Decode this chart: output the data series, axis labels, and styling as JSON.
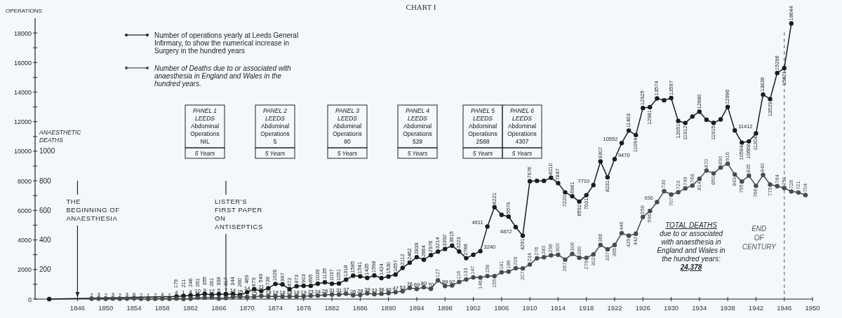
{
  "chart_data": {
    "type": "line",
    "title": "CHART I",
    "ylabel": "OPERATIONS",
    "y2label": "ANAESTHETIC DEATHS",
    "xlim": [
      1840,
      1950
    ],
    "xticks": [
      1846,
      1850,
      1854,
      1858,
      1862,
      1866,
      1870,
      1874,
      1878,
      1882,
      1886,
      1890,
      1894,
      1898,
      1902,
      1906,
      1910,
      1914,
      1918,
      1922,
      1926,
      1930,
      1934,
      1938,
      1942,
      1946,
      1950
    ],
    "ylim": [
      0,
      19000
    ],
    "yticks": [
      0,
      {
        "value": 1000,
        "label": null
      },
      2000,
      {
        "value": 3000,
        "label": null
      },
      4000,
      {
        "value": 5000,
        "label": null
      },
      6000,
      {
        "value": 7000,
        "label": null
      },
      8000,
      {
        "value": 9000,
        "label": null
      },
      10000,
      {
        "value": 11000,
        "label": null
      },
      12000,
      {
        "value": 13000,
        "label": null
      },
      14000,
      {
        "value": 15000,
        "label": null
      },
      16000,
      {
        "value": 17000,
        "label": null
      },
      18000
    ],
    "y2lim": [
      0,
      1900
    ],
    "y2ticks": [
      200,
      400,
      600,
      800,
      1000
    ],
    "marker": "circle",
    "legend": "top left",
    "series": [
      {
        "name": "Number of operations yearly at Leeds General Infirmary, to show the numerical increase in Surgery in the hundred years",
        "color": "#1c1c1c",
        "x": [
          1842,
          1860,
          1861,
          1862,
          1863,
          1864,
          1865,
          1866,
          1867,
          1868,
          1869,
          1870,
          1871,
          1872,
          1873,
          1874,
          1875,
          1876,
          1877,
          1878,
          1879,
          1880,
          1881,
          1882,
          1883,
          1884,
          1885,
          1886,
          1887,
          1888,
          1889,
          1890,
          1891,
          1892,
          1893,
          1894,
          1895,
          1896,
          1897,
          1898,
          1899,
          1900,
          1901,
          1902,
          1903,
          1904,
          1905,
          1906,
          1907,
          1908,
          1909,
          1910,
          1911,
          1912,
          1913,
          1914,
          1915,
          1916,
          1917,
          1918,
          1919,
          1920,
          1921,
          1922,
          1923,
          1924,
          1925,
          1926,
          1927,
          1928,
          1929,
          1930,
          1931,
          1932,
          1933,
          1934,
          1935,
          1936,
          1937,
          1938,
          1939,
          1940,
          1941,
          1942,
          1943,
          1944,
          1945,
          1946,
          1947
        ],
        "values": [
          0,
          179,
          211,
          246,
          261,
          355,
          281,
          338,
          317,
          344,
          260,
          469,
          679,
          549,
          736,
          1026,
          997,
          672,
          873,
          903,
          895,
          1039,
          1135,
          1037,
          1051,
          1318,
          1585,
          1541,
          1435,
          1598,
          1424,
          1530,
          1657,
          2112,
          2462,
          2839,
          2664,
          2976,
          3214,
          3392,
          3615,
          3223,
          2766,
          3000,
          3240,
          4911,
          6221,
          5700,
          5579,
          4872,
          4291,
          7976,
          8000,
          8000,
          8210,
          7847,
          7220,
          6961,
          6592,
          7031,
          7710,
          9307,
          8231,
          9470,
          10552,
          11403,
          11094,
          12925,
          12981,
          13574,
          13450,
          13597,
          12051,
          11912,
          12350,
          12680,
          12130,
          11915,
          12150,
          12996,
          11412,
          10584,
          10668,
          11204,
          13836,
          13529,
          15296,
          15621,
          18644
        ],
        "value_labels": [
          null,
          "179",
          "211",
          "246",
          "261",
          "355",
          "281",
          "338",
          "317",
          "344",
          "260",
          "469",
          "679",
          "549",
          "736",
          "1026",
          "997",
          "672",
          "873",
          "903",
          "895",
          "1039",
          "1135",
          "1037",
          "1051",
          "1318",
          "1585",
          "1541",
          "1435",
          "1598",
          "1424",
          "1530",
          "1657",
          "2112",
          "2462",
          "2839",
          "2664",
          "2976",
          "3214",
          "3392",
          "3615",
          "3223",
          "2766",
          null,
          "3240",
          "4911",
          "6221",
          null,
          "5579",
          "4872",
          "4291",
          "7976",
          null,
          null,
          "8210",
          "7847",
          "7220",
          "6961",
          "6592",
          "7031",
          "7710",
          "9307",
          "8231",
          "9470",
          "10552",
          "11403",
          "11094",
          "12925",
          "12981",
          "13574",
          null,
          "13597",
          "12051",
          "11912",
          null,
          "12680",
          null,
          "11915",
          null,
          "12996",
          "11412",
          "10584",
          "10668",
          "11204",
          "13836",
          "13529",
          "15296",
          "15621",
          "18644"
        ]
      },
      {
        "name": "Number of Deaths due to or associated with anaesthesia in England and Wales in the hundred years.",
        "color": "#4a4a4a",
        "axis": "y2",
        "x": [
          1848,
          1849,
          1850,
          1851,
          1852,
          1853,
          1854,
          1855,
          1856,
          1857,
          1858,
          1859,
          1860,
          1861,
          1862,
          1863,
          1864,
          1865,
          1866,
          1867,
          1868,
          1869,
          1870,
          1871,
          1872,
          1873,
          1874,
          1875,
          1876,
          1877,
          1878,
          1879,
          1880,
          1881,
          1882,
          1883,
          1884,
          1885,
          1886,
          1887,
          1888,
          1889,
          1890,
          1891,
          1892,
          1893,
          1894,
          1895,
          1896,
          1897,
          1898,
          1899,
          1900,
          1901,
          1902,
          1903,
          1904,
          1905,
          1906,
          1907,
          1908,
          1909,
          1910,
          1911,
          1912,
          1913,
          1914,
          1915,
          1916,
          1917,
          1918,
          1919,
          1920,
          1921,
          1922,
          1923,
          1924,
          1925,
          1926,
          1927,
          1928,
          1929,
          1930,
          1931,
          1932,
          1933,
          1934,
          1935,
          1936,
          1937,
          1938,
          1939,
          1940,
          1941,
          1942,
          1943,
          1944,
          1945,
          1946,
          1947,
          1948,
          1949
        ],
        "values": [
          2,
          3,
          2,
          3,
          2,
          3,
          6,
          2,
          1,
          2,
          4,
          2,
          4,
          1,
          4,
          10,
          9,
          12,
          5,
          7,
          14,
          15,
          14,
          15,
          21,
          18,
          19,
          18,
          18,
          18,
          19,
          23,
          24,
          28,
          31,
          31,
          37,
          26,
          28,
          39,
          33,
          36,
          40,
          47,
          53,
          76,
          69,
          80,
          70,
          127,
          89,
          92,
          116,
          133,
          147,
          146,
          156,
          155,
          181,
          186,
          209,
          207,
          234,
          276,
          283,
          296,
          300,
          267,
          306,
          280,
          279,
          302,
          366,
          337,
          366,
          446,
          429,
          442,
          556,
          596,
          656,
          730,
          707,
          723,
          749,
          768,
          814,
          870,
          850,
          890,
          916,
          843,
          795,
          835,
          766,
          840,
          775,
          764,
          751,
          728,
          721,
          704
        ],
        "value_labels": [
          "2",
          "3",
          "2",
          "3",
          "2",
          "3",
          "6",
          "2",
          "1",
          "2",
          "4",
          "2",
          "4",
          "1",
          "4",
          "10",
          "9",
          "12",
          "5",
          "7",
          "14",
          "15",
          "14",
          "15",
          "21",
          "18",
          "19",
          "18",
          "18",
          "18",
          "19",
          "23",
          "24",
          "28",
          "31",
          "31",
          "37",
          "26",
          "28",
          "39",
          "33",
          "36",
          "40",
          "47",
          "53",
          "76",
          "69",
          "80",
          "70",
          "127",
          "89",
          "92",
          "116",
          "133",
          "147",
          "146",
          "156",
          "155",
          "181",
          "186",
          "209",
          "207",
          "234",
          "276",
          "283",
          "296",
          "300",
          "267",
          "306",
          "280",
          "279",
          "302",
          "366",
          "337",
          "366",
          "446",
          "429",
          "442",
          "556",
          "596",
          "656",
          "730",
          "707",
          "723",
          "749",
          "768",
          "814",
          "870",
          "850",
          "890",
          "916",
          "843",
          "795",
          "835",
          "766",
          "840",
          "775",
          "764",
          "751",
          "728",
          "721",
          "704"
        ]
      }
    ],
    "ref_lines": [
      {
        "axis": "x",
        "value": 1946,
        "label": "END OF CENTURY",
        "line_style": "dashed",
        "color": "#777777"
      }
    ],
    "annotations": [
      "PANEL 1\nLEEDS\nAbdominal\nOperations\nNIL\n5 Years",
      "PANEL 2\nLEEDS\nAbdominal\nOperations\n5\n5 Years",
      "PANEL 3\nLEEDS\nAbdominal\nOperations\n80\n5 Years",
      "PANEL 4\nLEEDS\nAbdominal\nOperations\n529\n5 Years",
      "PANEL 5\nLEEDS\nAbdominal\nOperations\n2588\n5 Years",
      "PANEL 6\nLEEDS\nAbdominal\nOperations\n4307\n5 Years",
      "TOTAL DEATHS\ndue to or associated\nwith anaesthesia in\nEngland and Wales in\nthe hundred years:\n24,378",
      {
        "text": "THE\nBEGINNING OF\nANAESTHESIA",
        "x": 1846,
        "y": 0
      },
      {
        "text": "LISTER'S\nFIRST PAPER\nON\nANTISEPTICS",
        "x": 1867,
        "y": 0
      }
    ]
  }
}
